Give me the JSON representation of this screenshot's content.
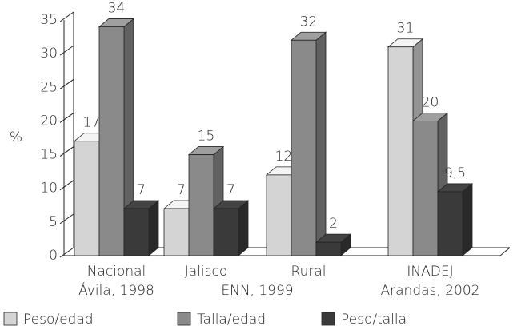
{
  "chart_data": {
    "type": "bar3d",
    "ylabel": "%",
    "categories": [
      "Nacional",
      "Jalisco",
      "Rural",
      "INADEJ"
    ],
    "group_labels": [
      "Ávila, 1998",
      "ENN, 1999",
      "Arandas, 2002"
    ],
    "series": [
      {
        "name": "Peso/edad",
        "color": "#d4d4d4",
        "values": [
          17,
          7,
          12,
          31
        ]
      },
      {
        "name": "Talla/edad",
        "color": "#8a8a8a",
        "values": [
          34,
          15,
          32,
          20
        ]
      },
      {
        "name": "Peso/talla",
        "color": "#3a3a3a",
        "values": [
          7,
          7,
          2,
          9.5
        ],
        "value_labels": [
          "7",
          "7",
          "2",
          "9,5"
        ]
      }
    ],
    "ylim": [
      0,
      35
    ],
    "yticks": [
      0,
      5,
      10,
      15,
      20,
      25,
      30,
      35
    ]
  }
}
